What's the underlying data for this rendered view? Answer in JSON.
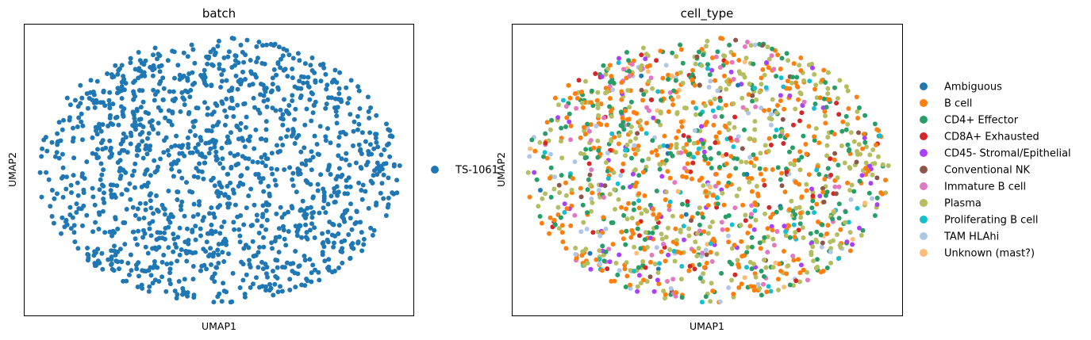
{
  "chart_data": [
    {
      "type": "scatter",
      "title": "batch",
      "xlabel": "UMAP1",
      "ylabel": "UMAP2",
      "grid": false,
      "ticks": false,
      "legend_position": "right",
      "series": [
        {
          "name": "TS-1061",
          "color": "#1f77b4"
        }
      ],
      "cluster": {
        "description_points": 1400,
        "x_range": [
          0.0,
          1.0
        ],
        "y_range": [
          0.0,
          1.0
        ]
      }
    },
    {
      "type": "scatter",
      "title": "cell_type",
      "xlabel": "UMAP1",
      "ylabel": "UMAP2",
      "grid": false,
      "ticks": false,
      "legend_position": "right",
      "series": [
        {
          "name": "Ambiguous",
          "color": "#1f77b4",
          "share": 0.01
        },
        {
          "name": "B cell",
          "color": "#ff7f0e",
          "share": 0.3
        },
        {
          "name": "CD4+ Effector",
          "color": "#279e68",
          "share": 0.18
        },
        {
          "name": "CD8A+ Exhausted",
          "color": "#d62728",
          "share": 0.04
        },
        {
          "name": "CD45- Stromal/Epithelial",
          "color": "#aa40fc",
          "share": 0.04
        },
        {
          "name": "Conventional NK",
          "color": "#8c564b",
          "share": 0.02
        },
        {
          "name": "Immature B cell",
          "color": "#e377c2",
          "share": 0.05
        },
        {
          "name": "Plasma",
          "color": "#b5bd61",
          "share": 0.26
        },
        {
          "name": "Proliferating B cell",
          "color": "#17becf",
          "share": 0.05
        },
        {
          "name": "TAM HLAhi",
          "color": "#aec7e8",
          "share": 0.04
        },
        {
          "name": "Unknown (mast?)",
          "color": "#ffbb78",
          "share": 0.01
        }
      ]
    }
  ]
}
